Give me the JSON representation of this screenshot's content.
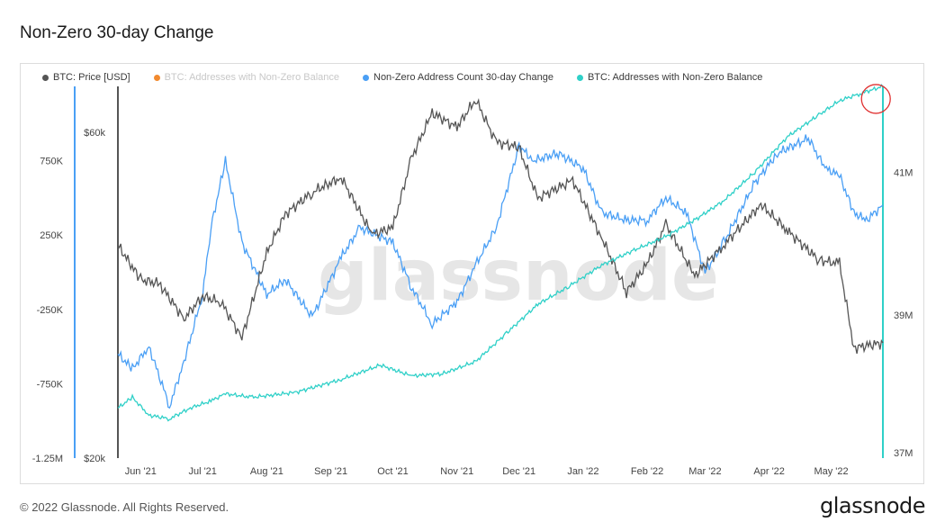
{
  "page": {
    "title": "Non-Zero 30-day Change"
  },
  "legend": [
    {
      "label": "BTC: Price [USD]",
      "color": "#555555",
      "active": true,
      "icon": "dot-icon"
    },
    {
      "label": "BTC: Addresses with Non-Zero Balance",
      "color": "#f28a2e",
      "active": false,
      "icon": "dot-icon"
    },
    {
      "label": "Non-Zero Address Count 30-day Change",
      "color": "#4a9ff5",
      "active": true,
      "icon": "dot-icon"
    },
    {
      "label": "BTC: Addresses with Non-Zero Balance",
      "color": "#2fd0c8",
      "active": true,
      "icon": "dot-icon"
    }
  ],
  "watermark": "glassnode",
  "footer": {
    "copyright": "© 2022 Glassnode. All Rights Reserved.",
    "brand": "glassnode"
  },
  "chart_data": {
    "type": "line",
    "x_ticks": [
      "Jun '21",
      "Jul '21",
      "Aug '21",
      "Sep '21",
      "Oct '21",
      "Nov '21",
      "Dec '21",
      "Jan '22",
      "Feb '22",
      "Mar '22",
      "Apr '22",
      "May '22"
    ],
    "x_range": [
      "2021-05-21",
      "2022-05-26"
    ],
    "axes": {
      "change_axis": {
        "ticks": [
          "750K",
          "250K",
          "-250K",
          "-750K",
          "-1.25M"
        ],
        "range": [
          -1250000,
          1250000
        ]
      },
      "price_axis": {
        "ticks": [
          "$60k",
          "$20k"
        ],
        "scale": "log",
        "range": [
          20000,
          70000
        ]
      },
      "address_axis": {
        "ticks": [
          "41M",
          "39M",
          "37M"
        ],
        "range": [
          37000000,
          42200000
        ]
      }
    },
    "grid": false,
    "legend_position": "top-left",
    "series": [
      {
        "name": "BTC: Price [USD]",
        "axis": "price",
        "color": "#555555",
        "x": [
          "2021-05-21",
          "2021-06-01",
          "2021-06-10",
          "2021-06-22",
          "2021-07-01",
          "2021-07-10",
          "2021-07-20",
          "2021-08-01",
          "2021-08-10",
          "2021-08-23",
          "2021-09-06",
          "2021-09-21",
          "2021-10-01",
          "2021-10-10",
          "2021-10-20",
          "2021-11-01",
          "2021-11-10",
          "2021-11-20",
          "2021-12-01",
          "2021-12-10",
          "2021-12-27",
          "2022-01-10",
          "2022-01-22",
          "2022-02-01",
          "2022-02-10",
          "2022-02-24",
          "2022-03-10",
          "2022-03-28",
          "2022-04-10",
          "2022-04-25",
          "2022-05-05",
          "2022-05-12",
          "2022-05-26"
        ],
        "values": [
          41000,
          36500,
          36000,
          32000,
          34500,
          33800,
          30000,
          40000,
          45500,
          49000,
          51500,
          42500,
          43500,
          55000,
          64000,
          61000,
          67000,
          58000,
          57000,
          48000,
          51000,
          42000,
          35000,
          38500,
          44000,
          37000,
          41000,
          47000,
          43000,
          39000,
          38500,
          29000,
          29500
        ]
      },
      {
        "name": "Non-Zero Address Count 30-day Change",
        "axis": "change",
        "color": "#4a9ff5",
        "x": [
          "2021-05-21",
          "2021-05-28",
          "2021-06-05",
          "2021-06-15",
          "2021-06-22",
          "2021-07-01",
          "2021-07-05",
          "2021-07-12",
          "2021-07-20",
          "2021-08-01",
          "2021-08-10",
          "2021-08-23",
          "2021-09-06",
          "2021-09-15",
          "2021-10-01",
          "2021-10-10",
          "2021-10-20",
          "2021-11-01",
          "2021-11-10",
          "2021-11-20",
          "2021-12-01",
          "2021-12-08",
          "2021-12-20",
          "2022-01-01",
          "2022-01-10",
          "2022-01-22",
          "2022-02-01",
          "2022-02-10",
          "2022-02-20",
          "2022-03-01",
          "2022-03-10",
          "2022-03-25",
          "2022-04-05",
          "2022-04-20",
          "2022-04-28",
          "2022-05-05",
          "2022-05-12",
          "2022-05-18",
          "2022-05-26"
        ],
        "values": [
          -550000,
          -650000,
          -500000,
          -900000,
          -600000,
          -150000,
          300000,
          750000,
          200000,
          -150000,
          -50000,
          -300000,
          100000,
          300000,
          200000,
          -100000,
          -350000,
          -200000,
          50000,
          300000,
          850000,
          750000,
          800000,
          700000,
          400000,
          350000,
          350000,
          500000,
          400000,
          0,
          200000,
          600000,
          800000,
          900000,
          700000,
          650000,
          400000,
          350000,
          450000
        ]
      },
      {
        "name": "BTC: Addresses with Non-Zero Balance",
        "axis": "address",
        "color": "#2fd0c8",
        "x": [
          "2021-05-21",
          "2021-05-28",
          "2021-06-05",
          "2021-06-15",
          "2021-06-25",
          "2021-07-05",
          "2021-07-12",
          "2021-07-25",
          "2021-08-15",
          "2021-09-06",
          "2021-09-25",
          "2021-10-10",
          "2021-10-25",
          "2021-11-10",
          "2021-11-25",
          "2021-12-10",
          "2021-12-25",
          "2022-01-10",
          "2022-01-25",
          "2022-02-10",
          "2022-02-25",
          "2022-03-10",
          "2022-03-25",
          "2022-04-10",
          "2022-04-25",
          "2022-05-05",
          "2022-05-15",
          "2022-05-26"
        ],
        "values": [
          37700,
          37850,
          37600,
          37550,
          37700,
          37800,
          37900,
          37850,
          37920,
          38100,
          38300,
          38150,
          38180,
          38350,
          38750,
          39150,
          39400,
          39700,
          39900,
          40100,
          40350,
          40600,
          41000,
          41500,
          41800,
          42000,
          42100,
          42200
        ]
      }
    ],
    "annotation": {
      "type": "circle",
      "color": "#e03030",
      "at": {
        "series": 3,
        "x": "2022-05-20"
      }
    }
  }
}
